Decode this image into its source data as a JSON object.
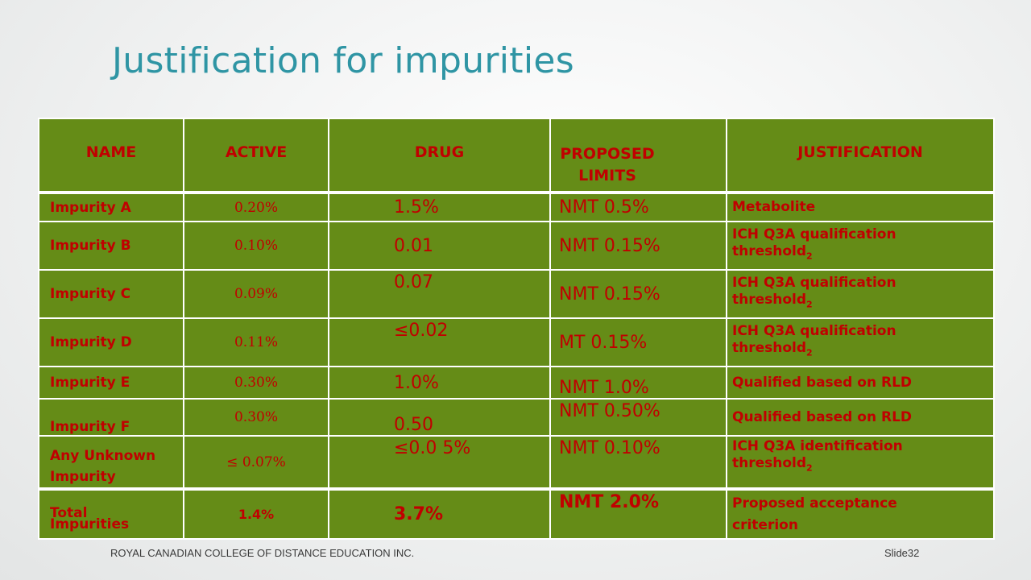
{
  "slide": {
    "title": "Justification for impurities",
    "footer_left": "ROYAL CANADIAN COLLEGE OF DISTANCE EDUCATION INC.",
    "footer_right": "Slide32"
  },
  "colors": {
    "title": "#2f95a4",
    "table_fill": "#658c17",
    "table_text": "#c00000",
    "grid_lines": "#ffffff"
  },
  "table": {
    "headers": [
      "NAME",
      "ACTIVE",
      "DRUG",
      "PROPOSED LIMITS",
      "JUSTIFICATION"
    ],
    "rows": [
      {
        "name": "Impurity A",
        "active": "0.20%",
        "drug": "1.5%",
        "limit": "NMT 0.5%",
        "justification": "Metabolite"
      },
      {
        "name": "Impurity B",
        "active": "0.10%",
        "drug": "0.01",
        "limit": "NMT 0.15%",
        "justification": "ICH Q3A qualification threshold",
        "justification_sub": "2"
      },
      {
        "name": "Impurity C",
        "active": "0.09%",
        "drug": "0.07",
        "limit": "NMT 0.15%",
        "justification": "ICH Q3A qualification threshold",
        "justification_sub": "2"
      },
      {
        "name": "Impurity D",
        "active": "0.11%",
        "drug": "≤0.02",
        "limit": "MT 0.15%",
        "justification": "ICH Q3A qualification threshold",
        "justification_sub": "2"
      },
      {
        "name": "Impurity E",
        "active": "0.30%",
        "drug": "1.0%",
        "limit": "NMT 1.0%",
        "justification": "Qualified based on RLD"
      },
      {
        "name": "Impurity F",
        "active": "0.30%",
        "drug": "0.50",
        "limit": "NMT 0.50%",
        "justification": "Qualified based on RLD"
      },
      {
        "name": "Any Unknown Impurity",
        "active": "≤ 0.07%",
        "drug": "≤0.0 5%",
        "limit": "NMT 0.10%",
        "justification": "ICH Q3A identification threshold",
        "justification_sub": "2"
      },
      {
        "name": "Total Impurities",
        "active": "1.4%",
        "drug": "3.7%",
        "limit": "NMT 2.0%",
        "justification": "Proposed acceptance criterion"
      }
    ]
  }
}
